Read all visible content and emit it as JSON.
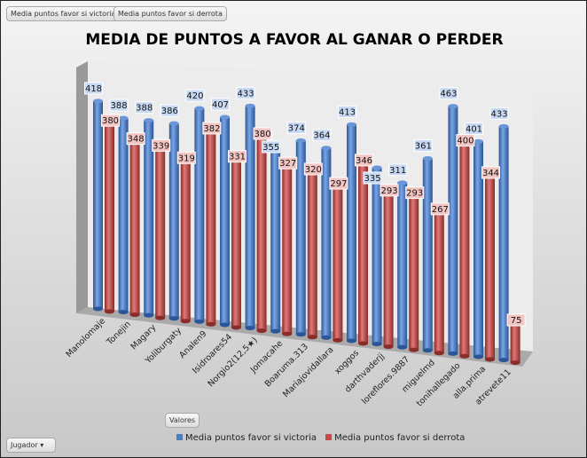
{
  "filters": [
    "Media puntos favor si victoria",
    "Media puntos favor si derrota"
  ],
  "values_button": "Valores",
  "player_field": "Jugador",
  "chart_data": {
    "type": "bar",
    "title": "MEDIA DE PUNTOS A FAVOR AL GANAR O PERDER",
    "categories": [
      "Manolomaje",
      "Tonejin",
      "Magary",
      "Yoliburgaty",
      "Analen9",
      "Isidroares54",
      "Norgio2(12,5★)",
      "Jomacahe",
      "Boaruma.313",
      "Mariajovidallara",
      "xoggos",
      "darthvaderjj",
      "loreflores.9887",
      "miguelmd",
      "tonihallegado",
      "alla.prima",
      "atrevete11"
    ],
    "series": [
      {
        "name": "Media puntos favor si victoria",
        "color": "#4a7fc8",
        "values": [
          418,
          388,
          388,
          386,
          420,
          407,
          433,
          355,
          374,
          364,
          413,
          335,
          311,
          361,
          463,
          401,
          433
        ]
      },
      {
        "name": "Media puntos favor si derrota",
        "color": "#c84a48",
        "values": [
          380,
          348,
          339,
          319,
          382,
          331,
          380,
          327,
          320,
          297,
          346,
          293,
          293,
          267,
          400,
          344,
          75
        ]
      }
    ],
    "legend": "bottom"
  }
}
